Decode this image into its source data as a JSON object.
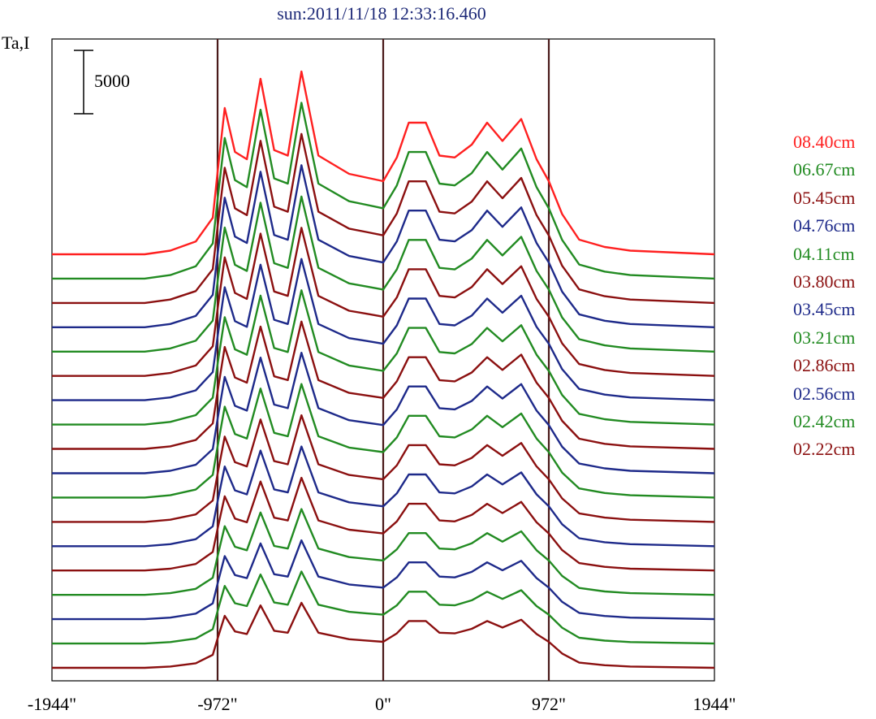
{
  "chart_data": {
    "type": "line",
    "title": "sun:2011/11/18 12:33:16.460",
    "ylabel": "Ta,I",
    "scale_bar_label": "5000",
    "xlim": [
      -1944,
      1944
    ],
    "x_ticks": [
      "-1944\"",
      "-972\"",
      "0\"",
      "972\"",
      "1944\""
    ],
    "vertical_lines_at": [
      -972,
      0,
      972
    ],
    "grid": false,
    "legend_position": "right",
    "profile_x": [
      -1944,
      -1400,
      -1250,
      -1100,
      -1000,
      -972,
      -930,
      -870,
      -800,
      -720,
      -640,
      -560,
      -480,
      -380,
      -200,
      -100,
      0,
      80,
      150,
      250,
      330,
      420,
      520,
      610,
      700,
      810,
      900,
      972,
      1050,
      1150,
      1300,
      1450,
      1944
    ],
    "profile_norm": [
      0,
      0,
      0.02,
      0.07,
      0.2,
      0.45,
      0.8,
      0.56,
      0.52,
      0.96,
      0.57,
      0.54,
      1.0,
      0.54,
      0.44,
      0.42,
      0.4,
      0.53,
      0.72,
      0.72,
      0.54,
      0.53,
      0.6,
      0.72,
      0.62,
      0.74,
      0.52,
      0.4,
      0.22,
      0.08,
      0.04,
      0.02,
      0
    ],
    "series": [
      {
        "name": "08.40cm",
        "color": "#ff2020"
      },
      {
        "name": "06.67cm",
        "color": "#228b22"
      },
      {
        "name": "05.45cm",
        "color": "#8b1010"
      },
      {
        "name": "04.76cm",
        "color": "#1e2a8a"
      },
      {
        "name": "04.11cm",
        "color": "#228b22"
      },
      {
        "name": "03.80cm",
        "color": "#8b1010"
      },
      {
        "name": "03.45cm",
        "color": "#1e2a8a"
      },
      {
        "name": "03.21cm",
        "color": "#228b22"
      },
      {
        "name": "02.86cm",
        "color": "#8b1010"
      },
      {
        "name": "02.56cm",
        "color": "#1e2a8a"
      },
      {
        "name": "02.42cm",
        "color": "#228b22"
      },
      {
        "name": "02.22cm",
        "color": "#8b1010"
      },
      {
        "name": "",
        "color": "#1e2a8a"
      },
      {
        "name": "",
        "color": "#8b1010"
      },
      {
        "name": "",
        "color": "#228b22"
      },
      {
        "name": "",
        "color": "#1e2a8a"
      },
      {
        "name": "",
        "color": "#228b22"
      },
      {
        "name": "",
        "color": "#8b1010"
      }
    ]
  }
}
